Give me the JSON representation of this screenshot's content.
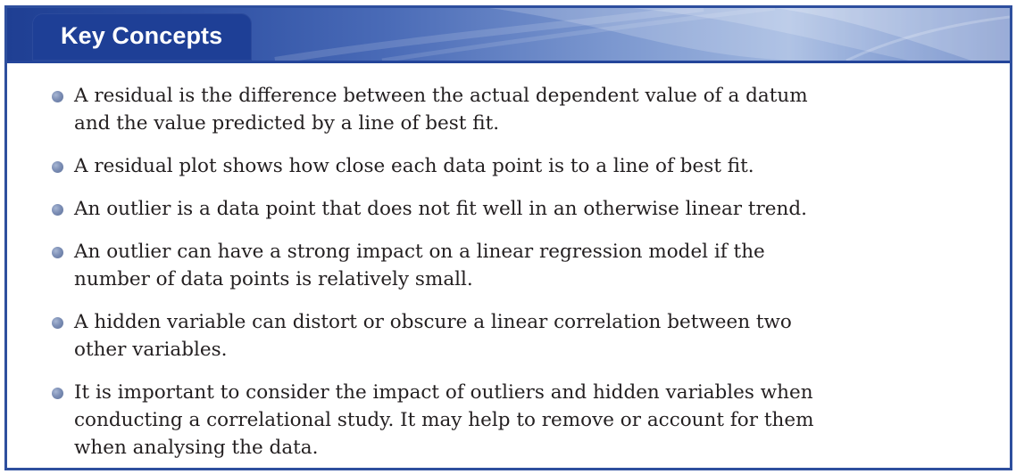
{
  "panel": {
    "title": "Key Concepts"
  },
  "concepts": [
    "A residual is the difference between the actual dependent value of a datum and the value predicted by a line of best fit.",
    "A residual plot shows how close each data point is to a line of best fit.",
    "An outlier is a data point that does not fit well in an otherwise linear trend.",
    "An outlier can have a strong impact on a linear regression model if the number of data points is relatively small.",
    "A hidden variable can distort or obscure a linear correlation between two other variables.",
    "It is important to consider the impact of outliers and hidden variables when conducting a correlational study. It may help to remove or account for them when analysing the data."
  ],
  "colors": {
    "border": "#2e4f9e",
    "tab": "#1e3f96",
    "text": "#231f20",
    "bullet": "#7d8fb6"
  }
}
